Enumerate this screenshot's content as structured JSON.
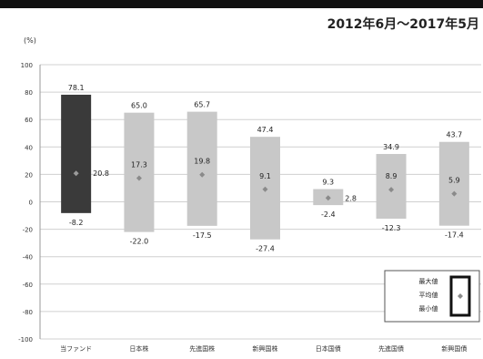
{
  "header": {
    "subtitle": "2012年6月～2017年5月",
    "unit": "(%)"
  },
  "chart_data": {
    "type": "bar",
    "categories": [
      "当ファンド",
      "日本株",
      "先進国株",
      "新興国株",
      "日本国債",
      "先進国債",
      "新興国債"
    ],
    "series": [
      {
        "name": "最大値",
        "values": [
          78.1,
          65.0,
          65.7,
          47.4,
          9.3,
          34.9,
          43.7
        ]
      },
      {
        "name": "平均値",
        "values": [
          20.8,
          17.3,
          19.8,
          9.1,
          2.8,
          8.9,
          5.9
        ]
      },
      {
        "name": "最小値",
        "values": [
          -8.2,
          -22.0,
          -17.5,
          -27.4,
          -2.4,
          -12.3,
          -17.4
        ]
      }
    ],
    "max_labels": [
      "78.1",
      "65.0",
      "65.7",
      "47.4",
      "9.3",
      "34.9",
      "43.7"
    ],
    "avg_labels": [
      "20.8",
      "17.3",
      "19.8",
      "9.1",
      "2.8",
      "8.9",
      "5.9"
    ],
    "min_labels": [
      "-8.2",
      "-22.0",
      "-17.5",
      "-27.4",
      "-2.4",
      "-12.3",
      "-17.4"
    ],
    "ylim": [
      -100,
      100
    ],
    "yticks": [
      100,
      80,
      60,
      40,
      20,
      0,
      -20,
      -40,
      -60,
      -80,
      -100
    ],
    "ytick_labels": [
      "100",
      "80",
      "60",
      "40",
      "20",
      "0",
      "-20",
      "-40",
      "-60",
      "-80",
      "-100"
    ],
    "grid": true,
    "highlight_index": 0,
    "legend": {
      "position": "bottom-right",
      "labels": [
        "最大値",
        "平均値",
        "最小値"
      ]
    },
    "colors": {
      "highlight_bar": "#3a3a3a",
      "bar": "#c8c8c8",
      "marker_on_dark": "#9a9a9a",
      "marker_on_light": "#8a8a8a",
      "grid": "#d0d0d0"
    }
  }
}
